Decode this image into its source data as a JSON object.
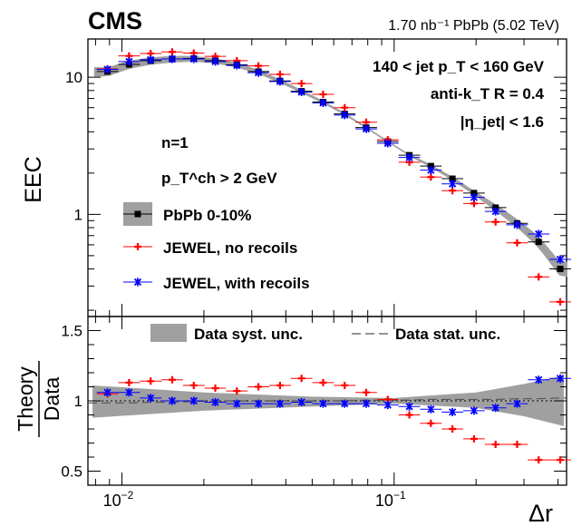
{
  "chart_data": [
    {
      "type": "scatter",
      "panel": "main",
      "experiment_label": "CMS",
      "luminosity_label": "1.70 nb⁻¹ PbPb (5.02 TeV)",
      "ylabel": "EEC",
      "yscale": "log",
      "xscale": "log",
      "xlim": [
        0.0075,
        0.43
      ],
      "ylim": [
        0.18,
        19
      ],
      "ytick_labels": [
        "1",
        "10"
      ],
      "ytick_values": [
        1,
        10
      ],
      "annotations": {
        "jet_pt": "140 < jet p_T < 160 GeV",
        "algo": "anti-k_T R = 0.4",
        "eta": "|η_jet| < 1.6",
        "n": "n=1",
        "track_pt": "p_T^ch > 2 GeV"
      },
      "legend": {
        "position": "center-left",
        "entries": [
          "PbPb 0-10%",
          "JEWEL, no recoils",
          "JEWEL, with recoils"
        ]
      },
      "x": [
        0.00885,
        0.01062,
        0.01275,
        0.0153,
        0.01836,
        0.02203,
        0.02644,
        0.03173,
        0.03808,
        0.0457,
        0.05484,
        0.06581,
        0.07897,
        0.09477,
        0.11373,
        0.13648,
        0.16378,
        0.19654,
        0.23585,
        0.28302,
        0.33963,
        0.40756
      ],
      "series": [
        {
          "name": "PbPb 0-10%",
          "color": "#000000",
          "marker": "square",
          "values": [
            11.0,
            12.4,
            13.2,
            13.6,
            13.7,
            13.2,
            12.3,
            11.0,
            9.4,
            7.9,
            6.6,
            5.4,
            4.3,
            3.4,
            2.7,
            2.25,
            1.82,
            1.43,
            1.12,
            0.86,
            0.63,
            0.4
          ]
        },
        {
          "name": "JEWEL, no recoils",
          "color": "#ff0000",
          "marker": "cross",
          "values": [
            11.5,
            14.3,
            14.9,
            15.3,
            15.0,
            14.2,
            13.2,
            12.1,
            10.5,
            9.0,
            7.5,
            6.0,
            4.7,
            3.5,
            2.4,
            1.87,
            1.49,
            1.2,
            0.88,
            0.62,
            0.35,
            0.23
          ]
        },
        {
          "name": "JEWEL, with recoils",
          "color": "#0000ff",
          "marker": "star",
          "values": [
            11.4,
            13.0,
            13.4,
            13.6,
            13.6,
            13.0,
            12.2,
            10.8,
            9.3,
            7.8,
            6.5,
            5.3,
            4.2,
            3.3,
            2.6,
            2.1,
            1.67,
            1.33,
            1.05,
            0.84,
            0.72,
            0.47
          ]
        }
      ]
    },
    {
      "type": "scatter",
      "panel": "ratio",
      "ylabel_top": "Theory",
      "ylabel_bottom": "Data",
      "xlabel": "Δr",
      "xscale": "log",
      "xlim": [
        0.0075,
        0.43
      ],
      "ylim": [
        0.4,
        1.6
      ],
      "ytick_values": [
        0.5,
        1,
        1.5
      ],
      "ytick_labels": [
        "0.5",
        "1",
        "1.5"
      ],
      "xtick_base": "10",
      "xtick_exponents": [
        "−2",
        "−1"
      ],
      "xtick_values": [
        0.01,
        0.1
      ],
      "legend": {
        "position": "top",
        "entries": [
          "Data syst. unc.",
          "Data stat. unc."
        ]
      },
      "syst_band": {
        "x": [
          0.0078,
          0.02,
          0.05,
          0.1,
          0.2,
          0.3,
          0.42
        ],
        "low": [
          0.88,
          0.93,
          0.96,
          0.98,
          0.95,
          0.89,
          0.82
        ],
        "high": [
          1.11,
          1.06,
          1.03,
          1.02,
          1.06,
          1.12,
          1.18
        ]
      },
      "x": [
        0.00885,
        0.01062,
        0.01275,
        0.0153,
        0.01836,
        0.02203,
        0.02644,
        0.03173,
        0.03808,
        0.0457,
        0.05484,
        0.06581,
        0.07897,
        0.09477,
        0.11373,
        0.13648,
        0.16378,
        0.19654,
        0.23585,
        0.28302,
        0.33963,
        0.40756
      ],
      "series": [
        {
          "name": "JEWEL, no recoils",
          "color": "#ff0000",
          "marker": "cross",
          "values": [
            1.05,
            1.13,
            1.14,
            1.15,
            1.11,
            1.09,
            1.07,
            1.1,
            1.11,
            1.16,
            1.13,
            1.11,
            1.06,
            1.01,
            0.9,
            0.84,
            0.8,
            0.73,
            0.69,
            0.69,
            0.58,
            0.58
          ]
        },
        {
          "name": "JEWEL, with recoils",
          "color": "#0000ff",
          "marker": "star",
          "values": [
            1.06,
            1.06,
            1.02,
            1.0,
            1.0,
            0.99,
            0.98,
            0.98,
            0.98,
            0.99,
            0.98,
            0.98,
            0.98,
            0.97,
            0.96,
            0.94,
            0.92,
            0.93,
            0.95,
            0.98,
            1.15,
            1.16
          ]
        },
        {
          "name": "Data stat. unc.",
          "color": "#555555",
          "marker": "none",
          "values": [
            0.985,
            0.985,
            0.99,
            0.99,
            0.995,
            1.0,
            1.0,
            1.0,
            1.0,
            1.0,
            1.0,
            1.0,
            1.005,
            1.005,
            1.005,
            1.01,
            1.01,
            1.01,
            1.01,
            1.015,
            1.015,
            1.02
          ]
        }
      ]
    }
  ],
  "colors": {
    "band": "#a0a0a0",
    "data": "#000000",
    "no_recoils": "#ff0000",
    "with_recoils": "#0000ff"
  }
}
